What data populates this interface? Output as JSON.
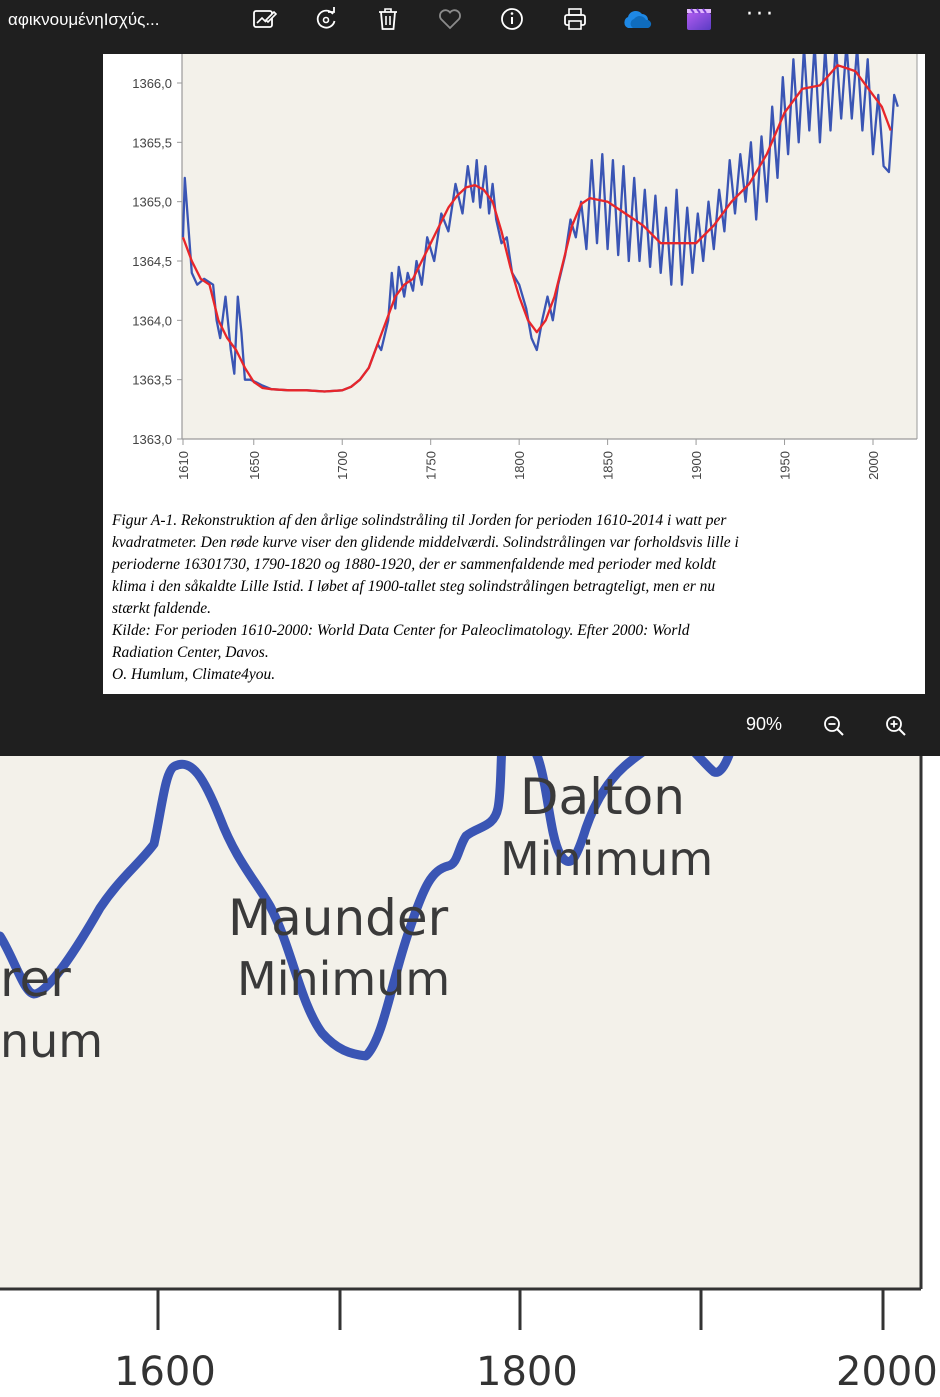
{
  "window": {
    "title": "αφικνουμένηΙσχύς..."
  },
  "toolbar": [
    {
      "name": "edit-image-icon"
    },
    {
      "name": "rotate-icon"
    },
    {
      "name": "delete-icon"
    },
    {
      "name": "favorite-icon"
    },
    {
      "name": "info-icon"
    },
    {
      "name": "print-icon"
    },
    {
      "name": "onedrive-icon"
    },
    {
      "name": "clipchamp-icon"
    },
    {
      "name": "more-icon",
      "label": "···"
    }
  ],
  "zoom": {
    "level": "90%"
  },
  "caption": {
    "lines": [
      "Figur A-1. Rekonstruktion af den årlige solindstråling til Jorden for perioden 1610-2014 i watt per",
      "kvadratmeter. Den røde kurve viser den glidende middelværdi. Solindstrålingen var forholdsvis lille i",
      "perioderne 16301730, 1790-1820 og 1880-1920, der er sammenfaldende med perioder med koldt",
      "klima i den såkaldte Lille Istid. I løbet af 1900-tallet steg solindstrålingen betragteligt, men er nu",
      "stærkt faldende.",
      "Kilde: For perioden 1610-2000: World Data Center for Paleoclimatology. Efter 2000: World",
      "Radiation Center, Davos.",
      "O. Humlum, Climate4you."
    ]
  },
  "chart_data": [
    {
      "type": "line",
      "title": "",
      "xlabel": "",
      "ylabel": "",
      "xlim": [
        1610,
        2020
      ],
      "ylim": [
        1363.0,
        1366.2
      ],
      "x_ticks": [
        "1610",
        "1650",
        "1700",
        "1750",
        "1800",
        "1850",
        "1900",
        "1950",
        "2000"
      ],
      "y_ticks": [
        "1366,0",
        "1365,5",
        "1365,0",
        "1364,5",
        "1364,0",
        "1363,5",
        "1363,0"
      ],
      "colors": {
        "annual": "#3a55b4",
        "smoothed": "#e8262a",
        "background": "#f3f1ea"
      },
      "series": [
        {
          "x": [
            1610,
            1615,
            1620,
            1625,
            1630,
            1635,
            1640,
            1645,
            1650,
            1655,
            1660,
            1670,
            1680,
            1690,
            1700,
            1705,
            1710,
            1715,
            1720,
            1725,
            1730,
            1735,
            1740,
            1745,
            1750,
            1755,
            1760,
            1765,
            1770,
            1775,
            1780,
            1785,
            1790,
            1795,
            1800,
            1805,
            1810,
            1815,
            1820,
            1825,
            1830,
            1835,
            1840,
            1850,
            1860,
            1870,
            1880,
            1890,
            1900,
            1910,
            1920,
            1930,
            1940,
            1950,
            1960,
            1970,
            1980,
            1990,
            2000,
            2005,
            2010
          ],
          "values": [
            1364.7,
            1364.5,
            1364.35,
            1364.3,
            1364.0,
            1363.85,
            1363.75,
            1363.6,
            1363.48,
            1363.43,
            1363.42,
            1363.41,
            1363.41,
            1363.4,
            1363.41,
            1363.44,
            1363.5,
            1363.6,
            1363.8,
            1364.0,
            1364.2,
            1364.3,
            1364.35,
            1364.5,
            1364.65,
            1364.8,
            1364.95,
            1365.05,
            1365.12,
            1365.14,
            1365.1,
            1365.0,
            1364.75,
            1364.45,
            1364.2,
            1364.0,
            1363.9,
            1364.0,
            1364.2,
            1364.5,
            1364.8,
            1364.98,
            1365.03,
            1365.0,
            1364.9,
            1364.8,
            1364.65,
            1364.65,
            1364.65,
            1364.8,
            1365.0,
            1365.15,
            1365.4,
            1365.75,
            1365.95,
            1365.98,
            1366.15,
            1366.1,
            1365.9,
            1365.8,
            1365.6
          ]
        },
        {
          "x": [
            1610,
            1611,
            1613,
            1615,
            1618,
            1622,
            1627,
            1629,
            1631,
            1634,
            1637,
            1639,
            1641,
            1643,
            1645,
            1648,
            1651,
            1655,
            1660,
            1670,
            1680,
            1690,
            1700,
            1705,
            1710,
            1715,
            1720,
            1722,
            1726,
            1728,
            1730,
            1732,
            1735,
            1737,
            1740,
            1742,
            1745,
            1748,
            1752,
            1756,
            1760,
            1764,
            1768,
            1771,
            1774,
            1776,
            1778,
            1781,
            1783,
            1785,
            1787,
            1790,
            1793,
            1796,
            1800,
            1804,
            1807,
            1810,
            1813,
            1816,
            1819,
            1822,
            1826,
            1829,
            1832,
            1835,
            1838,
            1841,
            1844,
            1847,
            1850,
            1853,
            1856,
            1859,
            1862,
            1865,
            1868,
            1871,
            1874,
            1877,
            1880,
            1883,
            1886,
            1889,
            1892,
            1895,
            1898,
            1901,
            1904,
            1907,
            1910,
            1913,
            1916,
            1919,
            1922,
            1925,
            1928,
            1931,
            1934,
            1937,
            1940,
            1943,
            1946,
            1949,
            1952,
            1955,
            1958,
            1961,
            1964,
            1967,
            1970,
            1973,
            1976,
            1979,
            1982,
            1985,
            1988,
            1991,
            1994,
            1997,
            2000,
            2003,
            2006,
            2009,
            2012,
            2014
          ],
          "values": [
            1364.7,
            1365.2,
            1364.8,
            1364.4,
            1364.3,
            1364.35,
            1364.3,
            1364.0,
            1363.85,
            1364.2,
            1363.75,
            1363.55,
            1364.2,
            1363.9,
            1363.5,
            1363.5,
            1363.48,
            1363.45,
            1363.42,
            1363.41,
            1363.41,
            1363.4,
            1363.41,
            1363.44,
            1363.5,
            1363.6,
            1363.8,
            1363.75,
            1364.0,
            1364.4,
            1364.1,
            1364.45,
            1364.2,
            1364.4,
            1364.25,
            1364.5,
            1364.3,
            1364.7,
            1364.5,
            1364.9,
            1364.75,
            1365.15,
            1364.9,
            1365.3,
            1365.0,
            1365.35,
            1364.95,
            1365.3,
            1364.9,
            1365.15,
            1364.85,
            1364.65,
            1364.7,
            1364.4,
            1364.3,
            1364.1,
            1363.85,
            1363.75,
            1364.0,
            1364.2,
            1364.0,
            1364.3,
            1364.55,
            1364.85,
            1364.7,
            1365.0,
            1364.6,
            1365.35,
            1364.65,
            1365.4,
            1364.6,
            1365.35,
            1364.55,
            1365.3,
            1364.5,
            1365.2,
            1364.5,
            1365.1,
            1364.45,
            1365.05,
            1364.4,
            1364.95,
            1364.3,
            1365.1,
            1364.3,
            1364.95,
            1364.4,
            1364.9,
            1364.5,
            1365.0,
            1364.6,
            1365.1,
            1364.75,
            1365.35,
            1364.9,
            1365.4,
            1365.0,
            1365.5,
            1364.85,
            1365.55,
            1365.0,
            1365.8,
            1365.2,
            1366.05,
            1365.4,
            1366.2,
            1365.5,
            1366.3,
            1365.6,
            1366.35,
            1365.5,
            1366.3,
            1365.6,
            1366.35,
            1365.7,
            1366.4,
            1365.7,
            1366.3,
            1365.6,
            1366.2,
            1365.4,
            1365.9,
            1365.3,
            1365.25,
            1365.9,
            1365.8
          ]
        }
      ]
    },
    {
      "type": "line",
      "title": "",
      "xlim": [
        1400,
        2010
      ],
      "x_ticks": [
        "1600",
        "1800",
        "2000"
      ],
      "annotations": [
        "Dalton",
        "Minimum",
        "Maunder",
        "Minimum",
        "rer",
        "num"
      ],
      "colors": {
        "line": "#3a55b4",
        "background": "#f3f1ea"
      }
    }
  ]
}
